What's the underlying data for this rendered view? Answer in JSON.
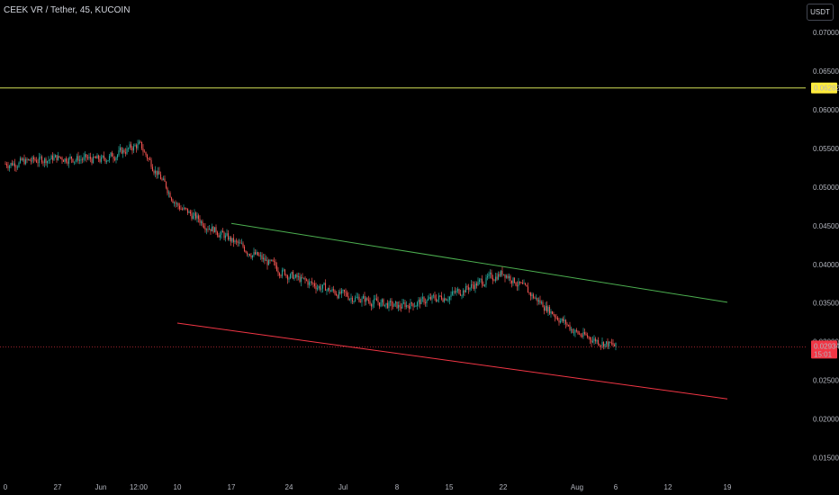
{
  "header": {
    "symbol_title": "CEEK VR / Tether, 45, KUCOIN",
    "currency_badge": "USDT"
  },
  "colors": {
    "background": "#000000",
    "axis_text": "#b2b5be",
    "up_candle": "#26a69a",
    "down_candle": "#ef5350",
    "horizontal_level": "#d4e157",
    "upper_trendline": "#4caf50",
    "lower_trendline": "#f23645",
    "last_price_badge": "#f23645",
    "level_badge": "#ffeb3b"
  },
  "chart_data": {
    "type": "candlestick",
    "title": "CEEK VR / Tether, 45, KUCOIN",
    "ylim": [
      0.0125,
      0.0735
    ],
    "y_ticks": [
      "0.07000",
      "0.06500",
      "0.06000",
      "0.05500",
      "0.05000",
      "0.04500",
      "0.04000",
      "0.03500",
      "0.03000",
      "0.02500",
      "0.02000",
      "0.01500"
    ],
    "x_ticks": [
      "0",
      "27",
      "Jun",
      "12:00",
      "10",
      "17",
      "24",
      "Jul",
      "8",
      "15",
      "22",
      "Aug",
      "6",
      "12",
      "19"
    ],
    "price_path": [
      [
        "0",
        0.053
      ],
      [
        "27",
        0.0538
      ],
      [
        "Jun",
        0.0535
      ],
      [
        "12:00",
        0.0555
      ],
      [
        "10",
        0.0475
      ],
      [
        "17",
        0.043
      ],
      [
        "24",
        0.0385
      ],
      [
        "Jul",
        0.036
      ],
      [
        "8",
        0.0345
      ],
      [
        "15",
        0.036
      ],
      [
        "22",
        0.039
      ],
      [
        "Aug",
        0.031
      ],
      [
        "6",
        0.0293
      ]
    ],
    "horizontal_level": {
      "value": 0.06282,
      "label": "0.06282"
    },
    "last_price": {
      "value": 0.02934,
      "label": "0.02934",
      "countdown": "15:01"
    },
    "upper_trendline": [
      [
        "17",
        0.0453
      ],
      [
        "19",
        0.0351
      ]
    ],
    "lower_trendline": [
      [
        "10",
        0.0324
      ],
      [
        "19",
        0.0226
      ]
    ],
    "grid": false
  }
}
